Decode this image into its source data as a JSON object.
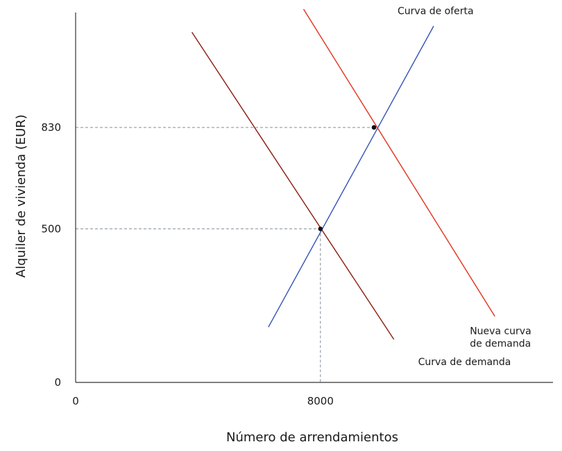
{
  "chart_data": {
    "type": "line",
    "xlabel": "Número de arrendamientos",
    "ylabel": "Alquiler de vivienda (EUR)",
    "x_ticks": [
      {
        "value": 0,
        "label": "0"
      },
      {
        "value": 8000,
        "label": "8000"
      }
    ],
    "y_ticks": [
      {
        "value": 0,
        "label": "0"
      },
      {
        "value": 500,
        "label": "500"
      },
      {
        "value": 830,
        "label": "830"
      }
    ],
    "xlim": [
      0,
      15600
    ],
    "ylim": [
      0,
      1220
    ],
    "series": [
      {
        "id": "demand",
        "label_lines": [
          "Curva de demanda"
        ],
        "color": "#8b1a0e",
        "x": [
          3800,
          10400
        ],
        "y": [
          1140,
          140
        ]
      },
      {
        "id": "supply",
        "label_lines": [
          "Curva de oferta"
        ],
        "color": "#3352b6",
        "x": [
          6300,
          11700
        ],
        "y": [
          180,
          1160
        ]
      },
      {
        "id": "new-demand",
        "label_lines": [
          "Nueva curva",
          "de demanda"
        ],
        "color": "#e4301a",
        "x": [
          7450,
          13700
        ],
        "y": [
          1215,
          215
        ]
      }
    ],
    "equilibria": [
      {
        "x": 8000,
        "y": 500,
        "show_x_guide": true
      },
      {
        "x": 9750,
        "y": 830,
        "show_x_guide": false
      }
    ],
    "grid": false
  }
}
